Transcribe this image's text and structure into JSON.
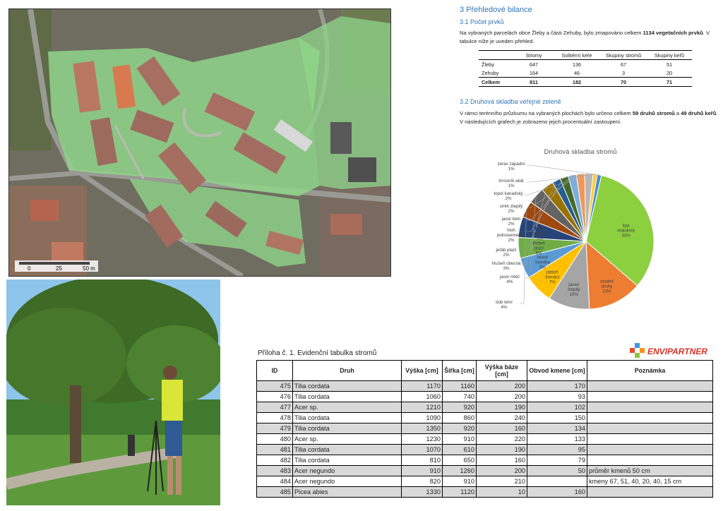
{
  "map": {
    "scale_labels": [
      "0",
      "25",
      "50 m"
    ]
  },
  "photo": {
    "description_placeholder": "Field worker measuring a tree with a tripod instrument"
  },
  "section": {
    "heading": "3   Přehledové bilance",
    "sub1": "3.1    Počet prvků",
    "para1_a": "Na vybraných parcelách obce Žleby a části Zehuby, bylo zmapováno celkem ",
    "para1_bold": "1134 vegetačních prvků",
    "para1_b": ". V tabulce níže je uveden přehled.",
    "sub2": "3.2    Druhová skladba veřejné zeleně",
    "para2_a": "V rámci terénního průzkumu na vybraných plochách bylo určeno celkem ",
    "para2_bold1": "59 druhů stromů",
    "para2_b": " a ",
    "para2_bold2": "49 druhů keřů",
    "para2_c": ". V následujících grafech je zobrazeno jejich procentuální zastoupení."
  },
  "count_table": {
    "headers": [
      "",
      "Stromy",
      "Solitérní keře",
      "Skupiny stromů",
      "Skupiny keřů"
    ],
    "rows": [
      [
        "Žleby",
        "647",
        "136",
        "67",
        "51"
      ],
      [
        "Zehuby",
        "164",
        "46",
        "3",
        "20"
      ]
    ],
    "total": [
      "Celkem",
      "811",
      "182",
      "70",
      "71"
    ]
  },
  "chart_data": {
    "type": "pie",
    "title": "Druhová skladba stromů",
    "slices": [
      {
        "label": "lípa malolistá",
        "pct_label": "33%",
        "value": 33,
        "color": "#8ccf3f"
      },
      {
        "label": "ostatní druhy",
        "pct_label": "13%",
        "value": 13,
        "color": "#ed7d31"
      },
      {
        "label": "jasan ztepilý",
        "pct_label": "10%",
        "value": 10,
        "color": "#a5a5a5"
      },
      {
        "label": "jabloň domácí",
        "pct_label": "7%",
        "value": 7,
        "color": "#ffc000"
      },
      {
        "label": "slivoň švestka",
        "pct_label": "5%",
        "value": 5,
        "color": "#5b9bd5"
      },
      {
        "label": "třešeň ptačí",
        "pct_label": "5%",
        "value": 5,
        "color": "#70ad47"
      },
      {
        "label": "habr obecný",
        "pct_label": "5%",
        "value": 5,
        "color": "#264478"
      },
      {
        "label": "dub letní",
        "pct_label": "4%",
        "value": 4,
        "color": "#9e480e"
      },
      {
        "label": "javor mléč",
        "pct_label": "4%",
        "value": 4,
        "color": "#636363"
      },
      {
        "label": "hrušeň obecná",
        "pct_label": "3%",
        "value": 3,
        "color": "#997300"
      },
      {
        "label": "jeřáb ptačí",
        "pct_label": "2%",
        "value": 2,
        "color": "#255e91"
      },
      {
        "label": "hloh jednosemenný",
        "pct_label": "2%",
        "value": 2,
        "color": "#43682b"
      },
      {
        "label": "javor klen",
        "pct_label": "2%",
        "value": 2,
        "color": "#7cafdd"
      },
      {
        "label": "smrk ztepilý",
        "pct_label": "2%",
        "value": 2,
        "color": "#f1975a"
      },
      {
        "label": "topol kanadský",
        "pct_label": "2%",
        "value": 2,
        "color": "#b7b7b7"
      },
      {
        "label": "trnovník akát",
        "pct_label": "1%",
        "value": 1,
        "color": "#ffcd33"
      },
      {
        "label": "zerav západní",
        "pct_label": "1%",
        "value": 1,
        "color": "#4c8bd0"
      }
    ]
  },
  "logo": {
    "text": "ENVIPARTNER"
  },
  "tree_table": {
    "title": "Příloha č. 1. Evidenční tabulka stromů",
    "headers": [
      "ID",
      "Druh",
      "Výška [cm]",
      "Šířka [cm]",
      "Výška báze [cm]",
      "Obvod kmene [cm]",
      "Poznámka"
    ],
    "rows": [
      [
        "475",
        "Tilia cordata",
        "1170",
        "1160",
        "200",
        "170",
        ""
      ],
      [
        "476",
        "Tilia cordata",
        "1060",
        "740",
        "200",
        "93",
        ""
      ],
      [
        "477",
        "Acer sp.",
        "1210",
        "920",
        "190",
        "102",
        ""
      ],
      [
        "478",
        "Tilia cordata",
        "1090",
        "860",
        "240",
        "150",
        ""
      ],
      [
        "479",
        "Tilia cordata",
        "1350",
        "920",
        "160",
        "134",
        ""
      ],
      [
        "480",
        "Acer sp.",
        "1230",
        "910",
        "220",
        "133",
        ""
      ],
      [
        "481",
        "Tilia cordata",
        "1070",
        "610",
        "190",
        "95",
        ""
      ],
      [
        "482",
        "Tilia cordata",
        "810",
        "650",
        "160",
        "79",
        ""
      ],
      [
        "483",
        "Acer negundo",
        "910",
        "1260",
        "200",
        "50",
        "průměr kmenů 50 cm"
      ],
      [
        "484",
        "Acer negundo",
        "820",
        "910",
        "210",
        "",
        "kmeny 67, 51, 40, 20, 40, 15 cm"
      ],
      [
        "485",
        "Picea abies",
        "1330",
        "1120",
        "10",
        "160",
        ""
      ]
    ]
  }
}
